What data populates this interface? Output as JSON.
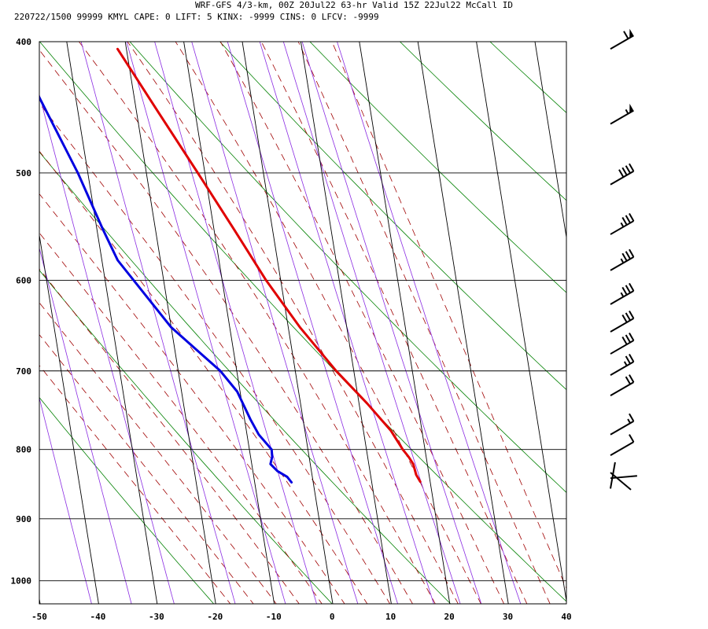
{
  "header": {
    "line1": "WRF-GFS 4/3-km, 00Z 20Jul22 63-hr Valid 15Z 22Jul22 McCall ID",
    "line2": "220722/1500 99999  KMYL    CAPE:     0 LIFT:     5 KINX: -9999 CINS:     0 LFCV: -9999"
  },
  "colors": {
    "temperature": "#e00000",
    "dewpoint": "#0000e0",
    "isobar_isotherm": "#000000",
    "dry_adiabat": "#008000",
    "moist_adiabat": "#a00000",
    "mixing_ratio": "#8a2be2",
    "wind_barb": "#000000"
  },
  "chart_data": {
    "type": "skew-t",
    "xlabel": "",
    "ylabel": "",
    "x_ticks": [
      -50,
      -40,
      -30,
      -20,
      -10,
      0,
      10,
      20,
      30,
      40
    ],
    "y_ticks": [
      400,
      500,
      600,
      700,
      800,
      900,
      1000
    ],
    "xlim": [
      -50,
      40
    ],
    "ylim": [
      1040,
      400
    ],
    "y_scale": "log",
    "series": [
      {
        "key": "temperature",
        "values": [
          {
            "p": 405,
            "t": -21.5
          },
          {
            "p": 450,
            "t": -16.4
          },
          {
            "p": 500,
            "t": -11.2
          },
          {
            "p": 550,
            "t": -6.6
          },
          {
            "p": 600,
            "t": -2.5
          },
          {
            "p": 650,
            "t": 2.0
          },
          {
            "p": 700,
            "t": 7.0
          },
          {
            "p": 740,
            "t": 11.4
          },
          {
            "p": 775,
            "t": 14.7
          },
          {
            "p": 800,
            "t": 16.2
          },
          {
            "p": 810,
            "t": 17.0
          },
          {
            "p": 820,
            "t": 17.6
          },
          {
            "p": 835,
            "t": 17.8
          },
          {
            "p": 845,
            "t": 18.3
          }
        ]
      },
      {
        "key": "dewpoint",
        "values": [
          {
            "p": 405,
            "t": -38.5
          },
          {
            "p": 430,
            "t": -37.0
          },
          {
            "p": 500,
            "t": -31.7
          },
          {
            "p": 550,
            "t": -29.0
          },
          {
            "p": 580,
            "t": -27.3
          },
          {
            "p": 650,
            "t": -20.0
          },
          {
            "p": 700,
            "t": -12.8
          },
          {
            "p": 725,
            "t": -10.5
          },
          {
            "p": 760,
            "t": -9.0
          },
          {
            "p": 780,
            "t": -8.0
          },
          {
            "p": 800,
            "t": -6.2
          },
          {
            "p": 810,
            "t": -6.3
          },
          {
            "p": 820,
            "t": -6.8
          },
          {
            "p": 830,
            "t": -5.8
          },
          {
            "p": 838,
            "t": -4.3
          },
          {
            "p": 846,
            "t": -3.7
          }
        ]
      }
    ],
    "wind_barbs": [
      {
        "p": 405,
        "speed_kt": 60
      },
      {
        "p": 460,
        "speed_kt": 55
      },
      {
        "p": 510,
        "speed_kt": 40
      },
      {
        "p": 555,
        "speed_kt": 35
      },
      {
        "p": 590,
        "speed_kt": 35
      },
      {
        "p": 625,
        "speed_kt": 35
      },
      {
        "p": 655,
        "speed_kt": 30
      },
      {
        "p": 680,
        "speed_kt": 30
      },
      {
        "p": 705,
        "speed_kt": 25
      },
      {
        "p": 730,
        "speed_kt": 20
      },
      {
        "p": 780,
        "speed_kt": 15
      },
      {
        "p": 808,
        "speed_kt": 10
      },
      {
        "p": 832,
        "speed_kt": 5
      },
      {
        "p": 840,
        "speed_kt": 5
      },
      {
        "p": 855,
        "speed_kt": 5
      }
    ],
    "grid": true
  }
}
